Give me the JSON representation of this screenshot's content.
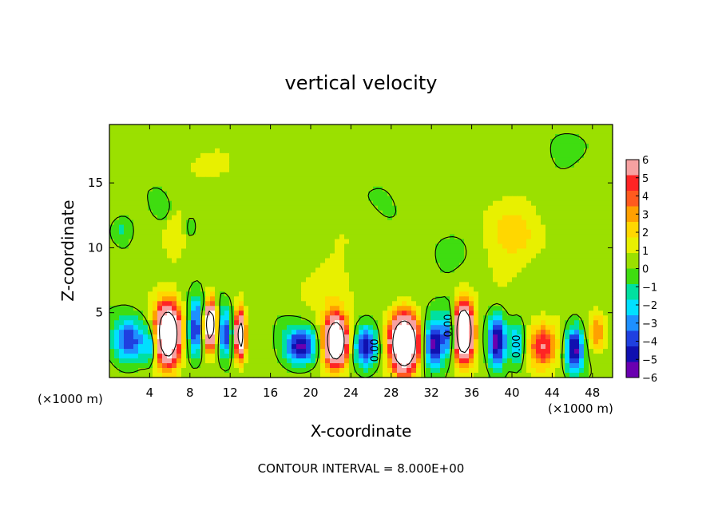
{
  "chart_data": {
    "type": "heatmap",
    "title": "vertical velocity",
    "xlabel": "X-coordinate",
    "ylabel": "Z-coordinate",
    "x_unit": "(×1000 m)",
    "x_unit_right": "(×1000 m)",
    "footer": "CONTOUR INTERVAL = 8.000E+00",
    "xlim": [
      0,
      50
    ],
    "ylim": [
      0,
      19.5
    ],
    "xticks": [
      4,
      8,
      12,
      16,
      20,
      24,
      28,
      32,
      36,
      40,
      44,
      48
    ],
    "yticks": [
      5,
      10,
      15
    ],
    "colorbar": {
      "ticks": [
        6,
        5,
        4,
        3,
        2,
        1,
        0,
        -1,
        -2,
        -3,
        -4,
        -5,
        -6
      ],
      "tick_labels": [
        "6",
        "5",
        "4",
        "3",
        "2",
        "1",
        "0",
        "−1",
        "−2",
        "−3",
        "−4",
        "−5",
        "−6"
      ],
      "colors": [
        "#f7a1a1",
        "#ff2424",
        "#ff5a1e",
        "#ffa000",
        "#ffd700",
        "#e8f000",
        "#9be000",
        "#3fdd10",
        "#00e0a0",
        "#00e0ff",
        "#1e90ff",
        "#1f40e0",
        "#1010b0",
        "#6a00b0"
      ],
      "range": [
        -6,
        6
      ]
    },
    "background_value": 0.4,
    "features": [
      {
        "x": 5.8,
        "z": 3.3,
        "amp": 14,
        "sx": 1.2,
        "sz": 2.2
      },
      {
        "x": 10.0,
        "z": 4.2,
        "amp": 12,
        "sx": 0.6,
        "sz": 1.8
      },
      {
        "x": 13.0,
        "z": 3.3,
        "amp": 10,
        "sx": 0.5,
        "sz": 1.8
      },
      {
        "x": 11.5,
        "z": 3.4,
        "amp": -5,
        "sx": 0.7,
        "sz": 1.8
      },
      {
        "x": 8.5,
        "z": 3.7,
        "amp": -5,
        "sx": 0.7,
        "sz": 1.8
      },
      {
        "x": 2.0,
        "z": 2.8,
        "amp": -4.5,
        "sx": 1.6,
        "sz": 1.8
      },
      {
        "x": 4.2,
        "z": 2.5,
        "amp": -3,
        "sx": 0.8,
        "sz": 1.5
      },
      {
        "x": 19.0,
        "z": 2.4,
        "amp": -6,
        "sx": 1.6,
        "sz": 1.4
      },
      {
        "x": 22.5,
        "z": 2.8,
        "amp": 14,
        "sx": 1.1,
        "sz": 1.8
      },
      {
        "x": 25.5,
        "z": 2.4,
        "amp": -5,
        "sx": 1.1,
        "sz": 1.6
      },
      {
        "x": 29.3,
        "z": 2.6,
        "amp": 16,
        "sx": 1.3,
        "sz": 2.0
      },
      {
        "x": 32.3,
        "z": 2.6,
        "amp": -6,
        "sx": 1.0,
        "sz": 1.8
      },
      {
        "x": 35.2,
        "z": 3.6,
        "amp": 15,
        "sx": 0.9,
        "sz": 2.0
      },
      {
        "x": 33.8,
        "z": 3.4,
        "amp": -4,
        "sx": 0.6,
        "sz": 1.6
      },
      {
        "x": 38.5,
        "z": 2.8,
        "amp": -6,
        "sx": 0.9,
        "sz": 2.0
      },
      {
        "x": 40.5,
        "z": 2.6,
        "amp": -3,
        "sx": 0.7,
        "sz": 1.6
      },
      {
        "x": 43.0,
        "z": 2.4,
        "amp": 5,
        "sx": 1.4,
        "sz": 1.6
      },
      {
        "x": 46.2,
        "z": 2.2,
        "amp": -6,
        "sx": 0.9,
        "sz": 1.8
      },
      {
        "x": 48.5,
        "z": 3.5,
        "amp": 3,
        "sx": 0.8,
        "sz": 1.5
      },
      {
        "x": 1.2,
        "z": 11.5,
        "amp": -1.5,
        "sx": 1.0,
        "sz": 0.9
      },
      {
        "x": 5.5,
        "z": 13.0,
        "amp": -1.2,
        "sx": 1.2,
        "sz": 1.2
      },
      {
        "x": 8.0,
        "z": 11.5,
        "amp": -1.0,
        "sx": 0.6,
        "sz": 1.0
      },
      {
        "x": 9.5,
        "z": 5.6,
        "amp": -2.0,
        "sx": 1.2,
        "sz": 0.9
      },
      {
        "x": 6.5,
        "z": 12.0,
        "amp": 1.0,
        "sx": 1.0,
        "sz": 3.0
      },
      {
        "x": 40.0,
        "z": 11.0,
        "amp": 1.5,
        "sx": 3.0,
        "sz": 3.0
      },
      {
        "x": 22.0,
        "z": 7.0,
        "amp": 0.8,
        "sx": 3.0,
        "sz": 3.0
      },
      {
        "x": 33.0,
        "z": 9.0,
        "amp": -0.6,
        "sx": 2.5,
        "sz": 2.0
      },
      {
        "x": 26.0,
        "z": 15.0,
        "amp": -0.5,
        "sx": 3.0,
        "sz": 2.0
      },
      {
        "x": 12.0,
        "z": 17.0,
        "amp": 0.7,
        "sx": 3.0,
        "sz": 2.0
      },
      {
        "x": 44.5,
        "z": 17.0,
        "amp": -0.6,
        "sx": 2.0,
        "sz": 2.0
      }
    ],
    "contour_labels": [
      {
        "x": 26.7,
        "z": 2.1,
        "text": "0.00"
      },
      {
        "x": 34.0,
        "z": 4.0,
        "text": "0.00"
      },
      {
        "x": 40.8,
        "z": 2.4,
        "text": "0.00"
      }
    ]
  }
}
